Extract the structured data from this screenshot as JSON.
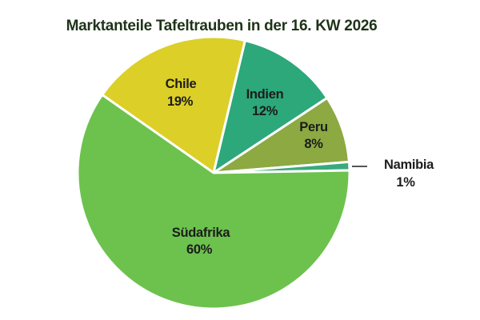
{
  "chart_data": {
    "type": "pie",
    "title": "Marktanteile Tafeltrauben in der 16. KW 2026",
    "categories": [
      "Chile",
      "Indien",
      "Peru",
      "Namibia",
      "Südafrika"
    ],
    "values": [
      19,
      12,
      8,
      1,
      60
    ],
    "display_values": [
      "19%",
      "12%",
      "8%",
      "1%",
      "60%"
    ],
    "unit": "%",
    "colors": [
      "#dccf28",
      "#2ca87b",
      "#8ca942",
      "#3aaa7e",
      "#6cc24d"
    ],
    "start_angle_deg": 145,
    "direction": "clockwise",
    "slice_border_color": "#ffffff",
    "title_color": "#1e3318",
    "label_color": "#1c1c1c",
    "legend": "none",
    "labels_inside": [
      "Chile",
      "Indien",
      "Peru",
      "Südafrika"
    ],
    "labels_outside_with_leader": [
      "Namibia"
    ]
  }
}
